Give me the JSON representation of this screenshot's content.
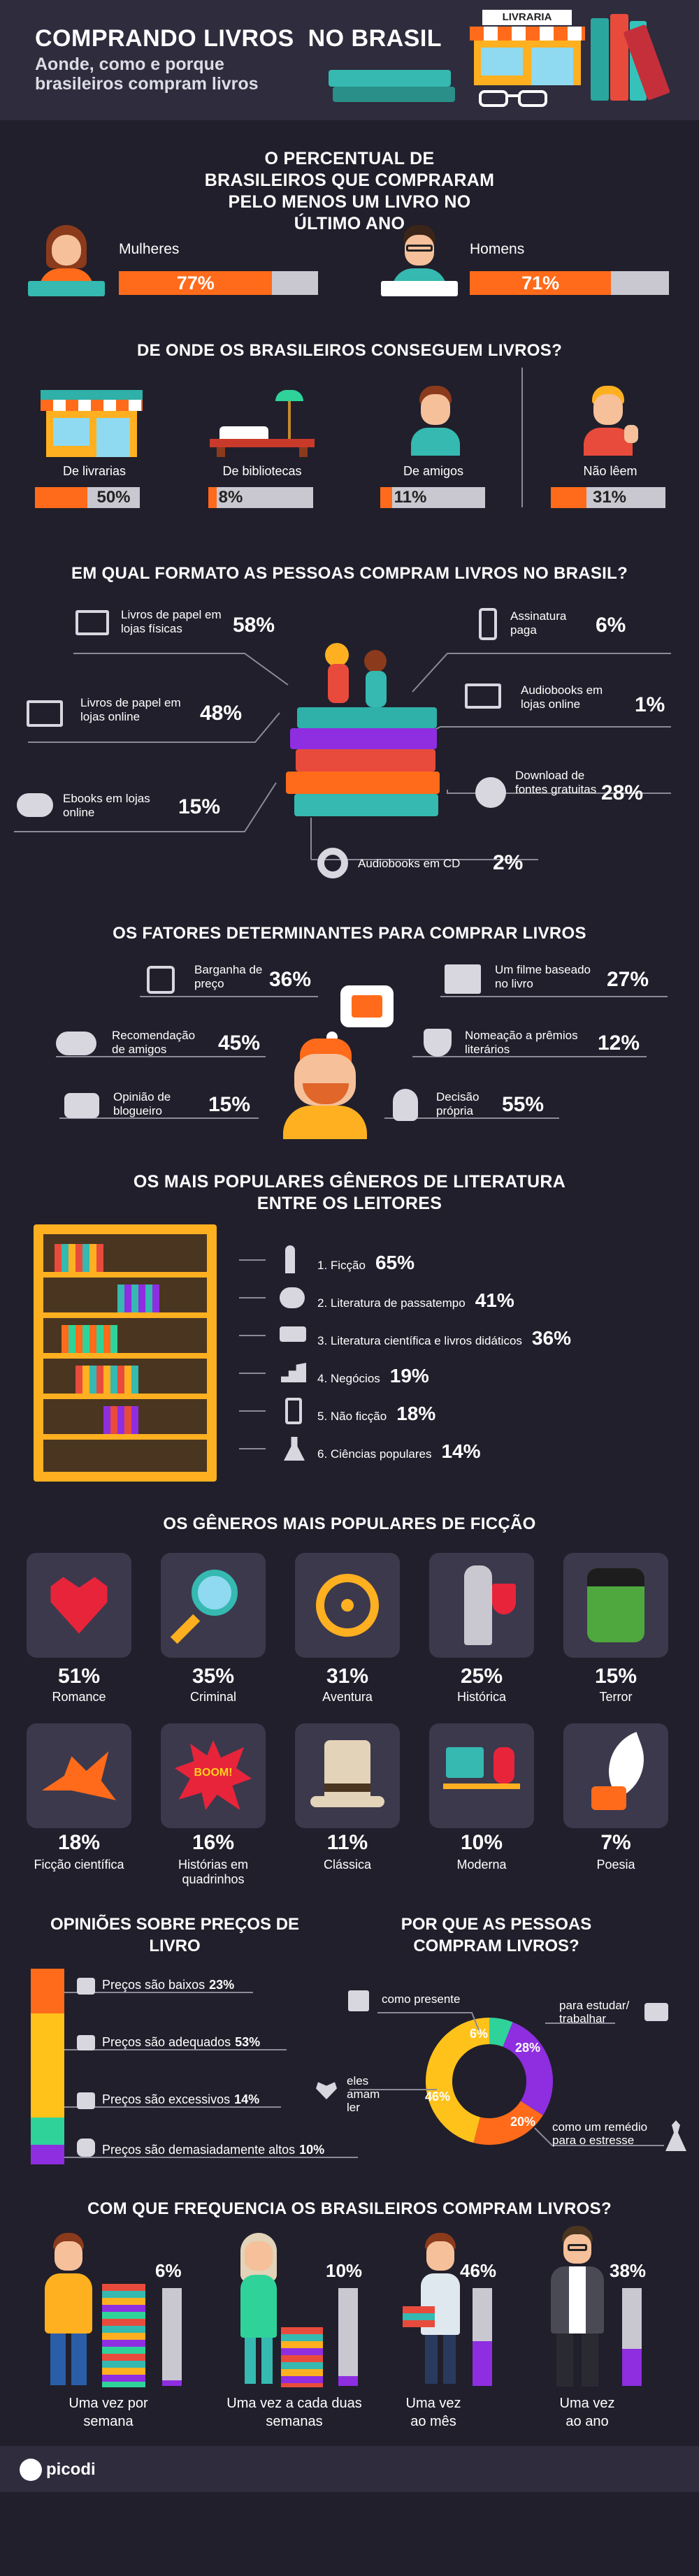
{
  "header": {
    "title": "COMPRANDO LIVROS  NO BRASIL",
    "subtitle": "Aonde, como e porque brasileiros compram livros",
    "shop_sign": "LIVRARIA"
  },
  "s1": {
    "title": "O PERCENTUAL DE BRASILEIROS QUE COMPRARAM PELO MENOS UM LIVRO NO ÚLTIMO ANO",
    "women": {
      "label": "Mulheres",
      "value": "77%",
      "fraction": 0.77
    },
    "men": {
      "label": "Homens",
      "value": "71%",
      "fraction": 0.71
    }
  },
  "s2": {
    "title": "DE ONDE OS BRASILEIROS CONSEGUEM LIVROS?",
    "items": [
      {
        "label": "De livrarias",
        "value": "50%",
        "fraction": 0.5
      },
      {
        "label": "De bibliotecas",
        "value": "8%",
        "fraction": 0.08
      },
      {
        "label": "De amigos",
        "value": "11%",
        "fraction": 0.11
      },
      {
        "label": "Não lêem",
        "value": "31%",
        "fraction": 0.31
      }
    ]
  },
  "s3": {
    "title": "EM QUAL FORMATO AS PESSOAS COMPRAM LIVROS NO BRASIL?",
    "items": [
      {
        "label": "Livros de papel em lojas físicas",
        "value": "58%"
      },
      {
        "label": "Livros de papel em lojas online",
        "value": "48%"
      },
      {
        "label": "Ebooks em lojas online",
        "value": "15%"
      },
      {
        "label": "Assinatura paga",
        "value": "6%"
      },
      {
        "label": "Audiobooks em lojas online",
        "value": "1%"
      },
      {
        "label": "Download de fontes gratuitas",
        "value": "28%"
      },
      {
        "label": "Audiobooks em CD",
        "value": "2%"
      }
    ]
  },
  "s4": {
    "title": "OS FATORES DETERMINANTES PARA COMPRAR LIVROS",
    "items": [
      {
        "label": "Barganha de preço",
        "value": "36%"
      },
      {
        "label": "Recomendação de amigos",
        "value": "45%"
      },
      {
        "label": "Opinião de blogueiro",
        "value": "15%"
      },
      {
        "label": "Um filme baseado no livro",
        "value": "27%"
      },
      {
        "label": "Nomeação a prêmios literários",
        "value": "12%"
      },
      {
        "label": "Decisão própria",
        "value": "55%"
      }
    ]
  },
  "s5": {
    "title": "OS MAIS POPULARES GÊNEROS DE LITERATURA ENTRE OS LEITORES",
    "items": [
      {
        "label": "1. Ficção",
        "value": "65%"
      },
      {
        "label": "2. Literatura de passatempo",
        "value": "41%"
      },
      {
        "label": "3. Literatura científica e livros didáticos",
        "value": "36%"
      },
      {
        "label": "4. Negócios",
        "value": "19%"
      },
      {
        "label": "5. Não ficção",
        "value": "18%"
      },
      {
        "label": "6. Ciências populares",
        "value": "14%"
      }
    ]
  },
  "s6": {
    "title": "OS GÊNEROS MAIS POPULARES DE FICÇÃO",
    "items": [
      {
        "label": "Romance",
        "value": "51%"
      },
      {
        "label": "Criminal",
        "value": "35%"
      },
      {
        "label": "Aventura",
        "value": "31%"
      },
      {
        "label": "Histórica",
        "value": "25%"
      },
      {
        "label": "Terror",
        "value": "15%"
      },
      {
        "label": "Ficção científica",
        "value": "18%"
      },
      {
        "label": "Histórias em quadrinhos",
        "value": "16%"
      },
      {
        "label": "Clássica",
        "value": "11%"
      },
      {
        "label": "Moderna",
        "value": "10%"
      },
      {
        "label": "Poesia",
        "value": "7%"
      }
    ],
    "boom": "BOOM!"
  },
  "s7": {
    "title": "OPINIÕES SOBRE PREÇOS DE LIVRO",
    "items": [
      {
        "label": "Preços são baixos",
        "value": "23%",
        "fraction": 0.23,
        "color": "#ff6b1a"
      },
      {
        "label": "Preços são adequados",
        "value": "53%",
        "fraction": 0.53,
        "color": "#ffc21a"
      },
      {
        "label": "Preços são excessivos",
        "value": "14%",
        "fraction": 0.14,
        "color": "#2fd39a"
      },
      {
        "label": "Preços são demasiadamente altos",
        "value": "10%",
        "fraction": 0.1,
        "color": "#8e2ee0"
      }
    ]
  },
  "s8": {
    "title": "POR QUE AS PESSOAS COMPRAM LIVROS?",
    "items": [
      {
        "label": "como presente",
        "value": "6%",
        "fraction": 0.06,
        "color": "#2fd39a"
      },
      {
        "label": "para estudar/ trabalhar",
        "value": "28%",
        "fraction": 0.28,
        "color": "#8e2ee0"
      },
      {
        "label": "como um remédio para o estresse",
        "value": "20%",
        "fraction": 0.2,
        "color": "#ff6b1a"
      },
      {
        "label": "eles amam ler",
        "value": "46%",
        "fraction": 0.46,
        "color": "#ffc21a"
      }
    ]
  },
  "s9": {
    "title": "COM QUE FREQUENCIA OS BRASILEIROS COMPRAM LIVROS?",
    "items": [
      {
        "label": "Uma vez por semana",
        "value": "6%",
        "fraction": 0.06
      },
      {
        "label": "Uma vez a cada duas semanas",
        "value": "10%",
        "fraction": 0.1
      },
      {
        "label": "Uma vez ao mês",
        "value": "46%",
        "fraction": 0.46
      },
      {
        "label": "Uma vez ao ano",
        "value": "38%",
        "fraction": 0.38
      }
    ]
  },
  "footer": {
    "brand": "picodi"
  }
}
